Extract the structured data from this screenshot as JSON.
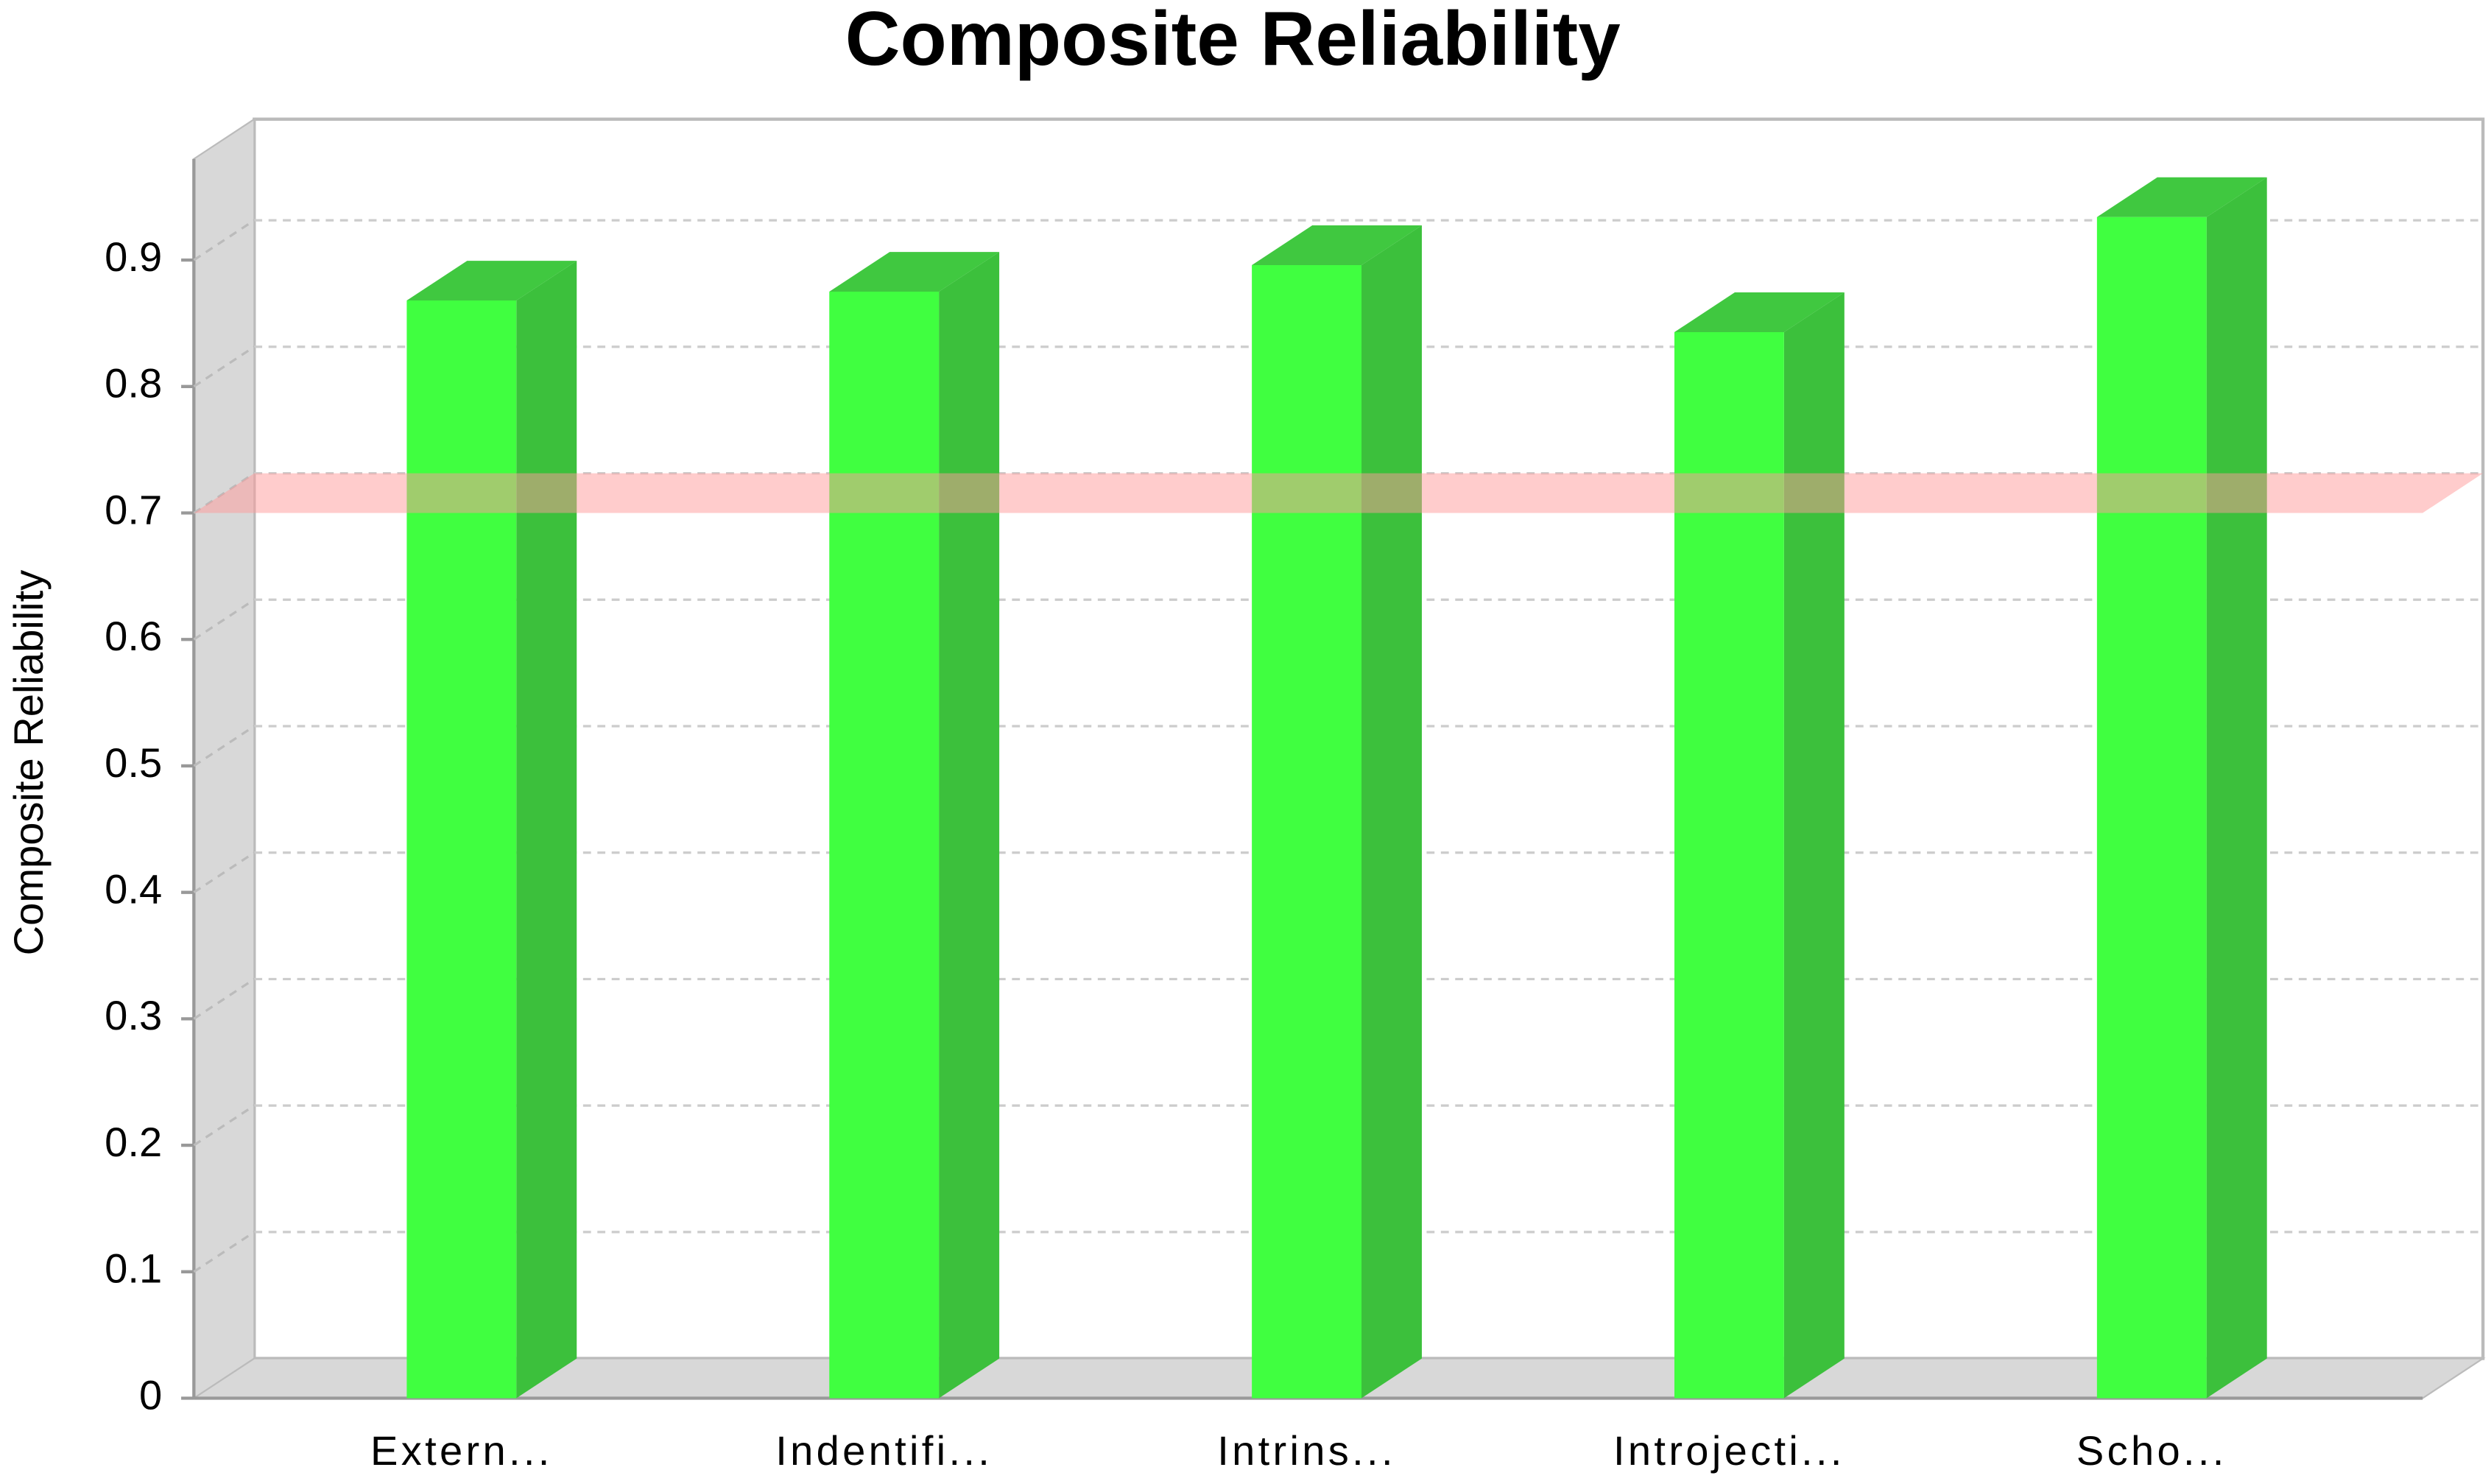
{
  "chart_data": {
    "type": "bar3d",
    "title": "Composite Reliability",
    "ylabel": "Composite Reliability",
    "categories": [
      "Extern...",
      "Indentifi...",
      "Intrins...",
      "Introjecti...",
      "Scho..."
    ],
    "values": [
      0.868,
      0.875,
      0.896,
      0.843,
      0.934
    ],
    "color": "#40ff40",
    "threshold": 0.7,
    "threshold_color": "#ff9999",
    "ylim": [
      0,
      0.98
    ],
    "yticks": [
      0,
      0.1,
      0.2,
      0.3,
      0.4,
      0.5,
      0.6,
      0.7,
      0.8,
      0.9
    ],
    "grid": true
  }
}
